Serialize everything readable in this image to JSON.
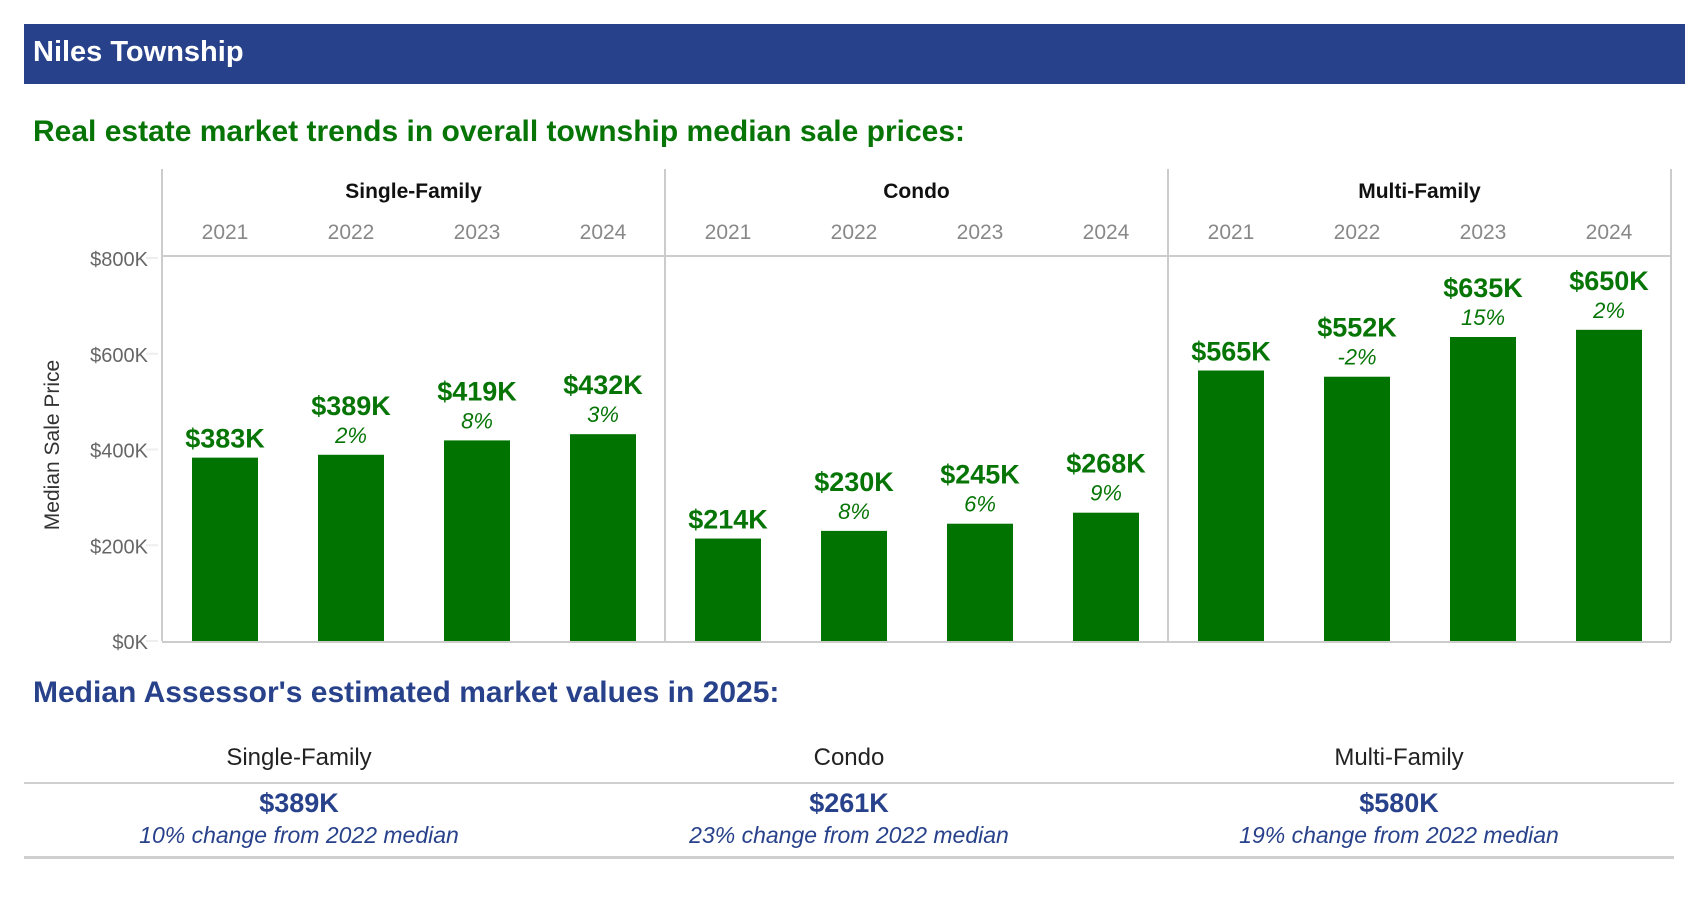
{
  "header": {
    "title": "Niles Township"
  },
  "trends_section": {
    "title": "Real estate market trends in overall township median sale prices:"
  },
  "assessor_section": {
    "title": "Median Assessor's estimated market values in 2025:",
    "columns": [
      {
        "label": "Single-Family",
        "value": "$389K",
        "change": "10% change from 2022 median"
      },
      {
        "label": "Condo",
        "value": "$261K",
        "change": "23% change from 2022 median"
      },
      {
        "label": "Multi-Family",
        "value": "$580K",
        "change": "19% change from 2022 median"
      }
    ]
  },
  "colors": {
    "bar": "#007300",
    "label_green": "#067506",
    "brand_blue": "#28418b",
    "axis_text": "#666666"
  },
  "chart_data": {
    "type": "bar",
    "title": "Real estate market trends in overall township median sale prices:",
    "ylabel": "Median Sale Price",
    "xlabel": "",
    "ylim": [
      0,
      800000
    ],
    "yticks": [
      0,
      200000,
      400000,
      600000,
      800000
    ],
    "ytick_labels": [
      "$0K",
      "$200K",
      "$400K",
      "$600K",
      "$800K"
    ],
    "grid": false,
    "facets": [
      "Single-Family",
      "Condo",
      "Multi-Family"
    ],
    "categories": [
      "2021",
      "2022",
      "2023",
      "2024"
    ],
    "series": [
      {
        "name": "Single-Family",
        "values": [
          383000,
          389000,
          419000,
          432000
        ],
        "labels": [
          "$383K",
          "$389K",
          "$419K",
          "$432K"
        ],
        "pct_change": [
          "",
          "2%",
          "8%",
          "3%"
        ]
      },
      {
        "name": "Condo",
        "values": [
          214000,
          230000,
          245000,
          268000
        ],
        "labels": [
          "$214K",
          "$230K",
          "$245K",
          "$268K"
        ],
        "pct_change": [
          "",
          "8%",
          "6%",
          "9%"
        ]
      },
      {
        "name": "Multi-Family",
        "values": [
          565000,
          552000,
          635000,
          650000
        ],
        "labels": [
          "$565K",
          "$552K",
          "$635K",
          "$650K"
        ],
        "pct_change": [
          "",
          "-2%",
          "15%",
          "2%"
        ]
      }
    ]
  }
}
